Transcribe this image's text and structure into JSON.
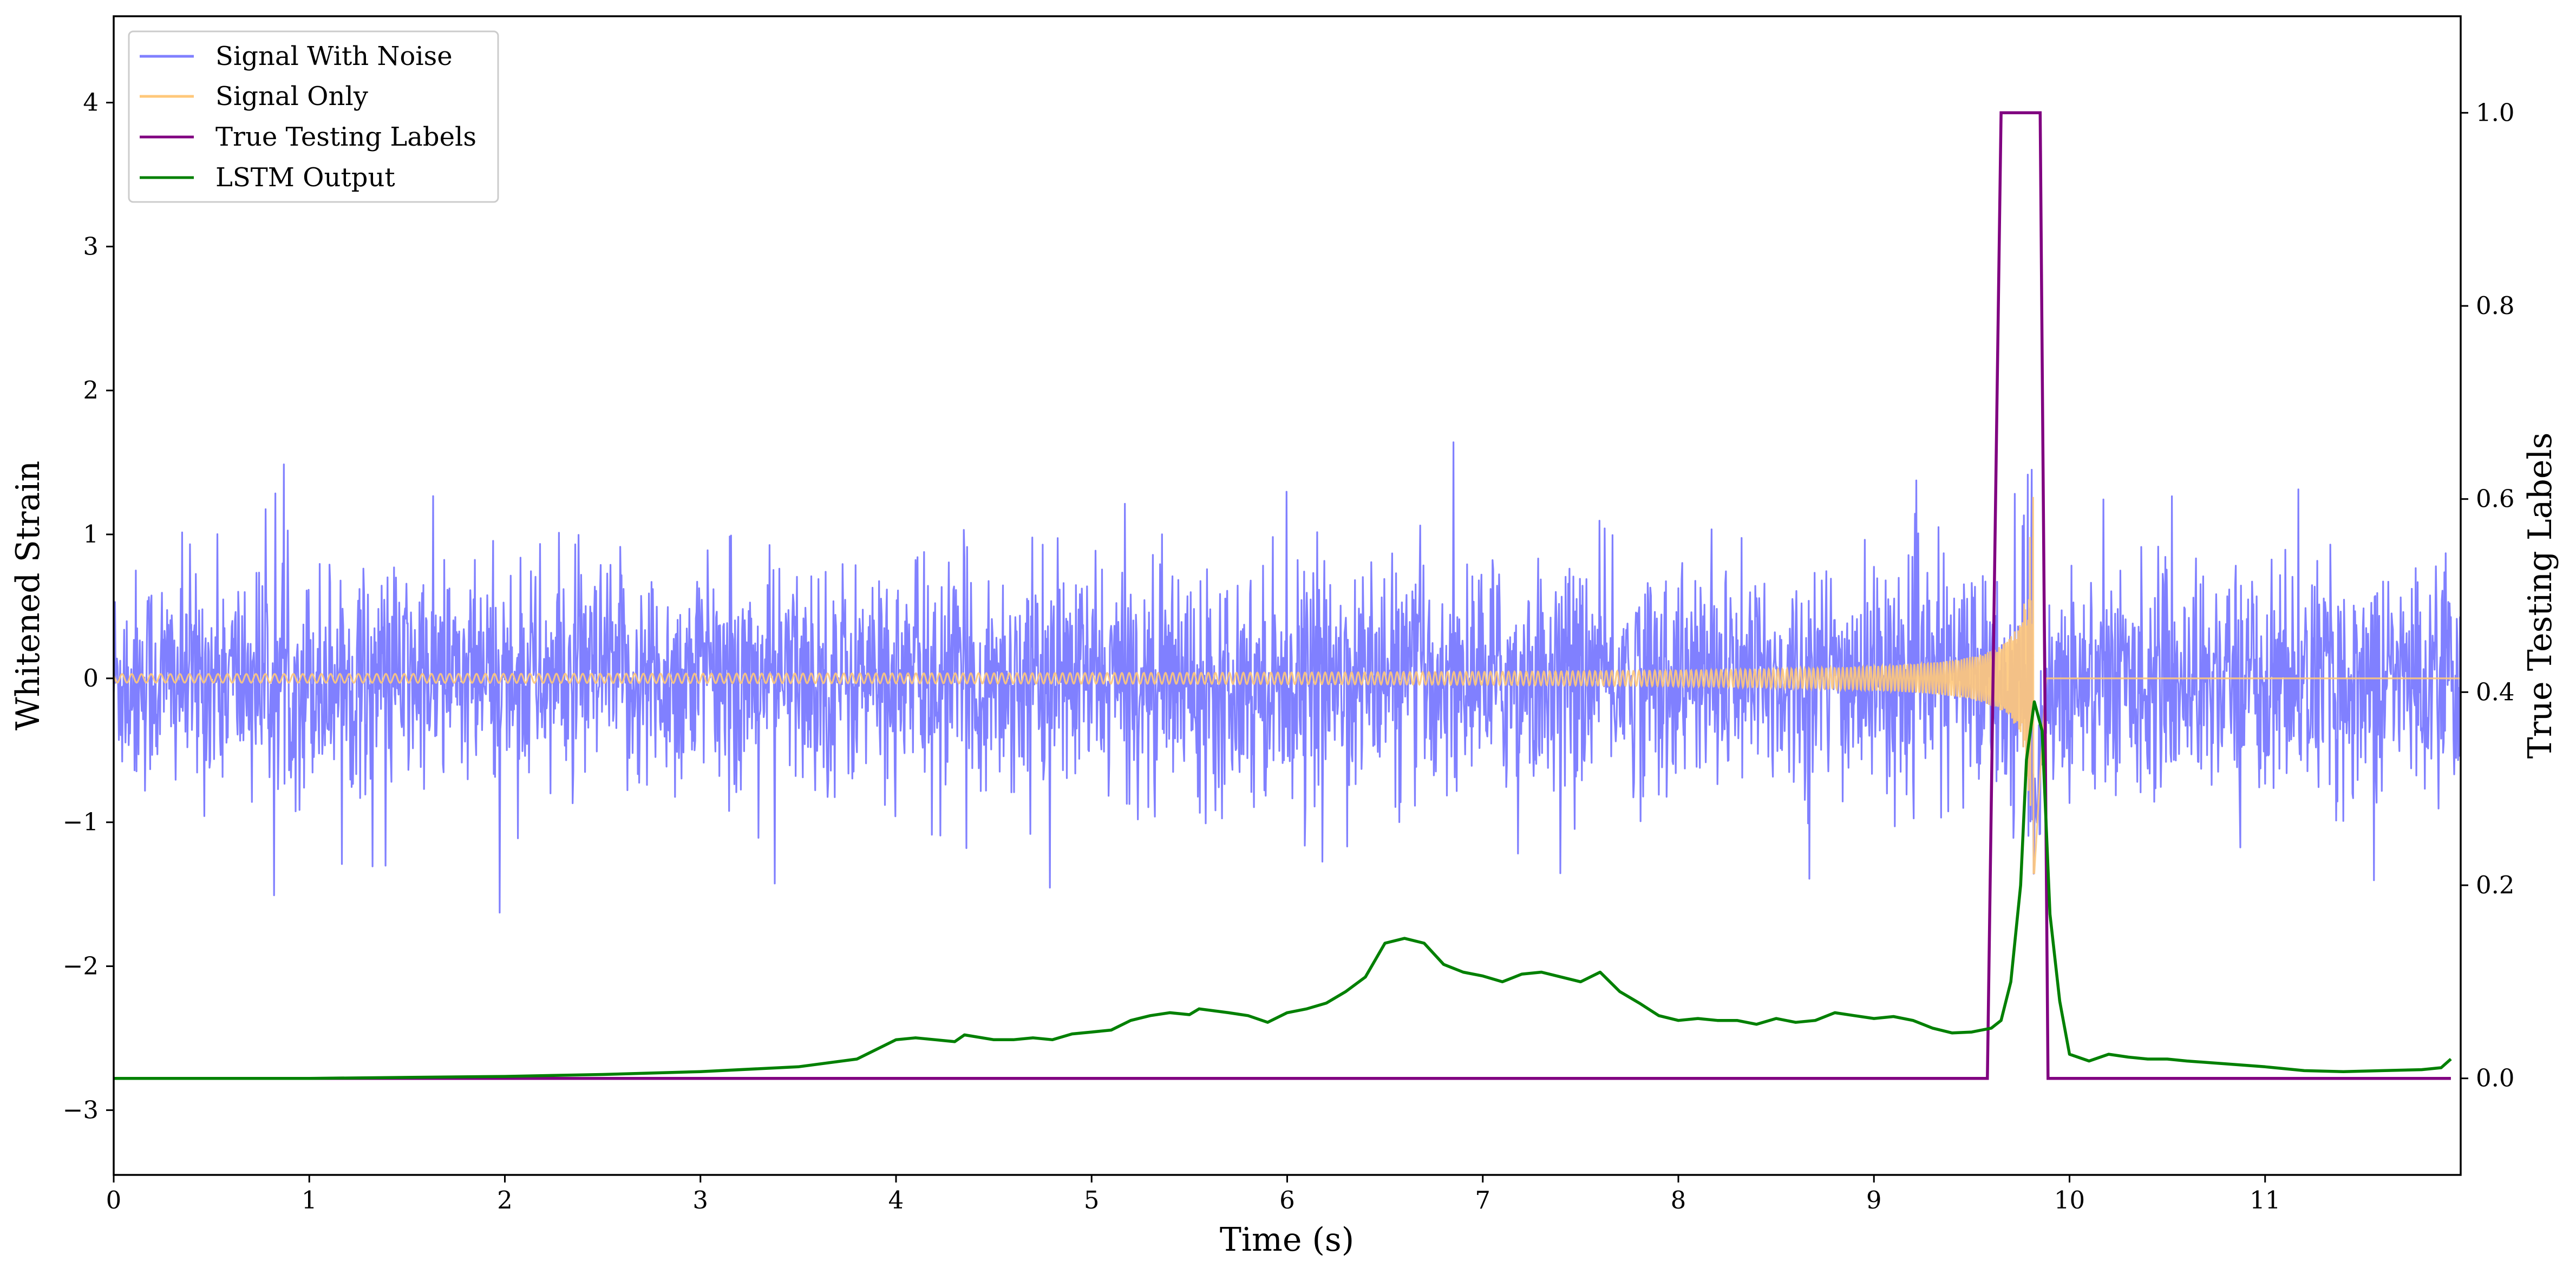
{
  "chart_data": {
    "type": "line",
    "xlabel": "Time (s)",
    "ylabel": "Whitened Strain",
    "ylabel_right": "True Testing Labels",
    "xlim": [
      0,
      12
    ],
    "ylim": [
      -3.45,
      4.6
    ],
    "ylim_right": [
      -0.1,
      1.1
    ],
    "xticks": [
      0,
      1,
      2,
      3,
      4,
      5,
      6,
      7,
      8,
      9,
      10,
      11
    ],
    "yticks": [
      -3,
      -2,
      -1,
      0,
      1,
      2,
      3,
      4
    ],
    "yticks_right": [
      0.0,
      0.2,
      0.4,
      0.6,
      0.8,
      1.0
    ],
    "grid": false,
    "legend_position": "top-left",
    "series": [
      {
        "name": "Signal With Noise",
        "axis": "left",
        "color": "#8080ff",
        "description_shape": "Gaussian-like noise, typical amplitude +/-0.45, peaks to about +/-1.6 across 0-12 s",
        "noise_spread": 0.45,
        "noise_peak": 1.6
      },
      {
        "name": "Signal Only",
        "axis": "left",
        "color": "#ffc87a",
        "chirp": {
          "start": 0,
          "merger": 9.82,
          "end": 9.88,
          "max_amplitude": 1.6,
          "min_amplitude": 0.02
        }
      },
      {
        "name": "True Testing Labels",
        "axis": "right",
        "color": "#800080",
        "x": [
          0,
          9.58,
          9.65,
          9.85,
          9.89,
          11.95
        ],
        "y": [
          0.0,
          0.0,
          1.0,
          1.0,
          0.0,
          0.0
        ]
      },
      {
        "name": "LSTM Output",
        "axis": "right",
        "color": "#008000",
        "x": [
          0,
          1,
          1.5,
          2,
          2.5,
          3,
          3.5,
          3.8,
          4.0,
          4.1,
          4.2,
          4.3,
          4.35,
          4.5,
          4.6,
          4.7,
          4.8,
          4.9,
          5.0,
          5.1,
          5.2,
          5.3,
          5.4,
          5.5,
          5.55,
          5.7,
          5.8,
          5.9,
          6.0,
          6.1,
          6.2,
          6.3,
          6.4,
          6.5,
          6.6,
          6.7,
          6.8,
          6.9,
          7.0,
          7.1,
          7.2,
          7.3,
          7.4,
          7.5,
          7.6,
          7.7,
          7.8,
          7.9,
          8.0,
          8.1,
          8.2,
          8.3,
          8.4,
          8.5,
          8.6,
          8.7,
          8.8,
          8.9,
          9.0,
          9.1,
          9.2,
          9.3,
          9.4,
          9.5,
          9.6,
          9.65,
          9.7,
          9.75,
          9.78,
          9.82,
          9.86,
          9.9,
          9.95,
          10.0,
          10.1,
          10.2,
          10.3,
          10.4,
          10.5,
          10.6,
          10.8,
          11.0,
          11.2,
          11.4,
          11.6,
          11.8,
          11.9,
          11.95
        ],
        "y": [
          0.0,
          0.0,
          0.001,
          0.002,
          0.004,
          0.007,
          0.012,
          0.02,
          0.04,
          0.042,
          0.04,
          0.038,
          0.045,
          0.04,
          0.04,
          0.042,
          0.04,
          0.046,
          0.048,
          0.05,
          0.06,
          0.065,
          0.068,
          0.066,
          0.072,
          0.068,
          0.065,
          0.058,
          0.068,
          0.072,
          0.078,
          0.09,
          0.105,
          0.14,
          0.145,
          0.14,
          0.118,
          0.11,
          0.106,
          0.1,
          0.108,
          0.11,
          0.105,
          0.1,
          0.11,
          0.09,
          0.078,
          0.065,
          0.06,
          0.062,
          0.06,
          0.06,
          0.056,
          0.062,
          0.058,
          0.06,
          0.068,
          0.065,
          0.062,
          0.064,
          0.06,
          0.052,
          0.047,
          0.048,
          0.052,
          0.06,
          0.1,
          0.2,
          0.33,
          0.39,
          0.36,
          0.17,
          0.08,
          0.025,
          0.018,
          0.025,
          0.022,
          0.02,
          0.02,
          0.018,
          0.015,
          0.012,
          0.008,
          0.007,
          0.008,
          0.009,
          0.011,
          0.02
        ]
      }
    ]
  }
}
